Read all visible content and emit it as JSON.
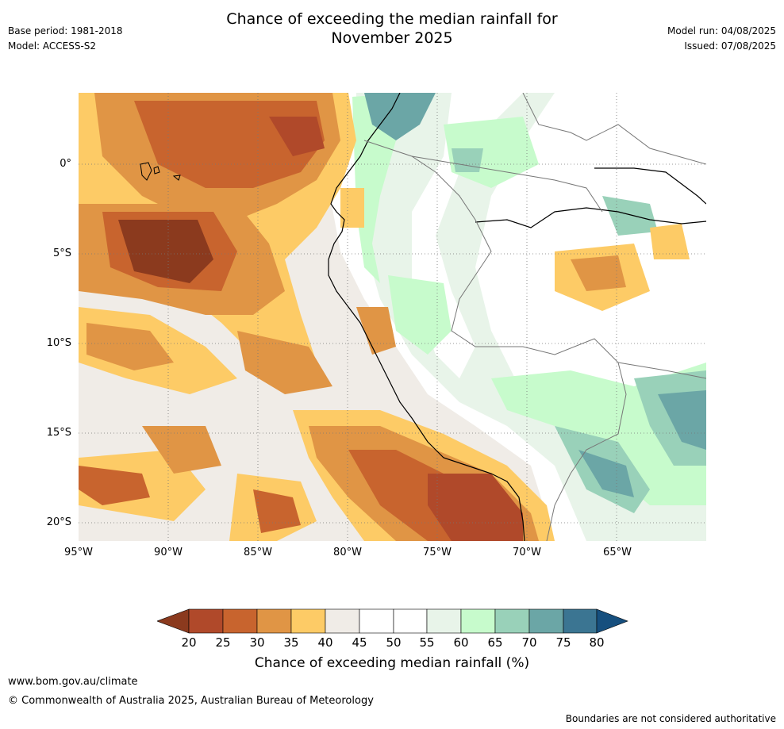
{
  "header": {
    "title_line1": "Chance of exceeding the median rainfall for",
    "title_line2": "November 2025",
    "base_period": "Base period: 1981-2018",
    "model": "Model: ACCESS-S2",
    "model_run": "Model run: 04/08/2025",
    "issued": "Issued: 07/08/2025"
  },
  "map": {
    "lat_labels": [
      "0°",
      "5°S",
      "10°S",
      "15°S",
      "20°S"
    ],
    "lon_labels": [
      "95°W",
      "90°W",
      "85°W",
      "80°W",
      "75°W",
      "70°W",
      "65°W"
    ],
    "lon_range": [
      -95,
      -60
    ],
    "lat_range": [
      -21,
      4
    ]
  },
  "colorbar": {
    "ticks": [
      "20",
      "25",
      "30",
      "35",
      "40",
      "45",
      "50",
      "55",
      "60",
      "65",
      "70",
      "75",
      "80"
    ],
    "colors": [
      "#8b3a1e",
      "#b0492a",
      "#c8642e",
      "#e09545",
      "#fdcb66",
      "#f0ece7",
      "#ffffff",
      "#ffffff",
      "#e8f4e9",
      "#c7fbcc",
      "#99d1b9",
      "#6ba6a6",
      "#3b7592",
      "#164f7e"
    ],
    "label": "Chance of exceeding median rainfall (%)"
  },
  "footer": {
    "website": "www.bom.gov.au/climate",
    "copyright": "© Commonwealth of Australia 2025, Australian Bureau of Meteorology",
    "disclaimer": "Boundaries are not considered authoritative"
  }
}
